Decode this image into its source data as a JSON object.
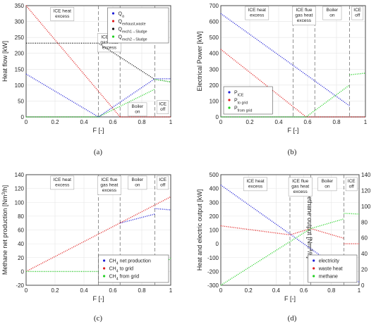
{
  "captions": [
    "(a)",
    "(b)",
    "(c)",
    "(d)"
  ],
  "colors": {
    "blue": "#1f1fd6",
    "red": "#e01e1e",
    "black": "#111111",
    "green": "#20d020"
  },
  "chart_data": [
    {
      "type": "line",
      "xlabel": "F [-]",
      "ylabel": "Heat flow [kW]",
      "xlim": [
        0,
        1
      ],
      "ylim": [
        0,
        350
      ],
      "xticks": [
        "0",
        "0.2",
        "0.4",
        "0.6",
        "0.8",
        "1"
      ],
      "yticks": [
        "0",
        "50",
        "100",
        "150",
        "200",
        "250",
        "300",
        "350"
      ],
      "grid": true,
      "legend_position": "top-right",
      "dividers": [
        0.5,
        0.65,
        0.89
      ],
      "zones": [
        {
          "lines": [
            "ICE heat",
            "excess"
          ],
          "x": 0.25,
          "y": 338
        },
        {
          "lines": [
            "ICE flue",
            "gas heat",
            "excess"
          ],
          "x": 0.575,
          "y": 256
        },
        {
          "lines": [
            "Boiler",
            "on"
          ],
          "x": 0.77,
          "y": 38
        },
        {
          "lines": [
            "ICE",
            "off"
          ],
          "x": 0.945,
          "y": 45
        }
      ],
      "series": [
        {
          "name": "Q_a",
          "color": "blue",
          "segments": [
            [
              [
                0,
                135
              ],
              [
                0.5,
                0
              ],
              [
                0.89,
                120
              ],
              [
                1,
                120
              ]
            ]
          ]
        },
        {
          "name": "Q_exhaust,waste",
          "color": "red",
          "segments": [
            [
              [
                0,
                350
              ],
              [
                0.65,
                0
              ]
            ],
            [
              [
                0.65,
                0
              ],
              [
                1,
                0
              ]
            ]
          ]
        },
        {
          "name": "Q_exch1→Sludge",
          "color": "black",
          "segments": [
            [
              [
                0,
                232
              ],
              [
                0.5,
                232
              ],
              [
                0.89,
                118
              ]
            ],
            [
              [
                0.89,
                118
              ],
              [
                1,
                110
              ]
            ]
          ]
        },
        {
          "name": "Q_exch2→Sludge",
          "color": "green",
          "segments": [
            [
              [
                0,
                0
              ],
              [
                0.5,
                0
              ],
              [
                0.89,
                87
              ]
            ],
            [
              [
                0.89,
                118
              ],
              [
                1,
                110
              ]
            ]
          ]
        }
      ]
    },
    {
      "type": "line",
      "xlabel": "F [-]",
      "ylabel": "Electrical Power [kW]",
      "xlim": [
        0,
        1
      ],
      "ylim": [
        0,
        700
      ],
      "xticks": [
        "0",
        "0.2",
        "0.4",
        "0.6",
        "0.8",
        "1"
      ],
      "yticks": [
        "0",
        "100",
        "200",
        "300",
        "400",
        "500",
        "600",
        "700"
      ],
      "grid": true,
      "legend_position": "bottom-left",
      "dividers": [
        0.5,
        0.65,
        0.89
      ],
      "zones": [
        {
          "lines": [
            "ICE heat",
            "excess"
          ],
          "x": 0.25,
          "y": 682
        },
        {
          "lines": [
            "ICE flue",
            "gas heat",
            "excess"
          ],
          "x": 0.575,
          "y": 682
        },
        {
          "lines": [
            "Boiler",
            "on"
          ],
          "x": 0.77,
          "y": 682
        },
        {
          "lines": [
            "ICE",
            "off"
          ],
          "x": 0.945,
          "y": 682
        }
      ],
      "series": [
        {
          "name": "P_ICE",
          "color": "blue",
          "segments": [
            [
              [
                0,
                650
              ],
              [
                0.89,
                70
              ]
            ]
          ]
        },
        {
          "name": "P_to grid",
          "color": "red",
          "segments": [
            [
              [
                0,
                425
              ],
              [
                0.59,
                0
              ],
              [
                1,
                0
              ]
            ]
          ]
        },
        {
          "name": "P_from grid",
          "color": "green",
          "segments": [
            [
              [
                0,
                0
              ],
              [
                0.59,
                0
              ],
              [
                0.89,
                200
              ]
            ],
            [
              [
                0.89,
                265
              ],
              [
                1,
                275
              ]
            ]
          ]
        }
      ]
    },
    {
      "type": "line",
      "xlabel": "F [-]",
      "ylabel": "Methane net production [Nm^3/h]",
      "xlim": [
        0,
        1
      ],
      "ylim": [
        -20,
        140
      ],
      "xticks": [
        "0",
        "0.2",
        "0.4",
        "0.6",
        "0.8",
        "1"
      ],
      "yticks": [
        "-20",
        "0",
        "20",
        "40",
        "60",
        "80",
        "100",
        "120",
        "140"
      ],
      "grid": true,
      "legend_position": "bottom-right",
      "dividers": [
        0.5,
        0.65,
        0.89
      ],
      "zones": [
        {
          "lines": [
            "ICE heat",
            "excess"
          ],
          "x": 0.25,
          "y": 135
        },
        {
          "lines": [
            "ICE flue",
            "gas heat",
            "excess"
          ],
          "x": 0.575,
          "y": 135
        },
        {
          "lines": [
            "Boiler",
            "on"
          ],
          "x": 0.77,
          "y": 135
        },
        {
          "lines": [
            "ICE",
            "off"
          ],
          "x": 0.945,
          "y": 135
        }
      ],
      "series": [
        {
          "name": "CH4 net production",
          "color": "blue",
          "segments": [
            [
              [
                0.65,
                70
              ],
              [
                0.89,
                83
              ]
            ],
            [
              [
                0.89,
                91
              ],
              [
                1,
                89
              ]
            ]
          ]
        },
        {
          "name": "CH4 to grid",
          "color": "red",
          "segments": [
            [
              [
                0,
                0
              ],
              [
                1,
                108
              ]
            ]
          ]
        },
        {
          "name": "CH4 from grid",
          "color": "green",
          "segments": [
            [
              [
                0,
                0
              ],
              [
                0.65,
                0
              ],
              [
                0.89,
                13
              ]
            ],
            [
              [
                0.89,
                0
              ],
              [
                1,
                19
              ]
            ]
          ]
        }
      ]
    },
    {
      "type": "line",
      "xlabel": "F [-]",
      "ylabel": "Heat and electric output [kW]",
      "y2label": "Methane output [Nm^3/h]",
      "xlim": [
        0,
        1
      ],
      "ylim": [
        -300,
        500
      ],
      "y2lim": [
        0,
        140
      ],
      "xticks": [
        "0",
        "0.2",
        "0.4",
        "0.6",
        "0.8",
        "1"
      ],
      "yticks": [
        "-300",
        "-200",
        "-100",
        "0",
        "100",
        "200",
        "300",
        "400",
        "500"
      ],
      "y2ticks": [
        "0",
        "20",
        "40",
        "60",
        "80",
        "100",
        "120",
        "140"
      ],
      "grid": true,
      "legend_position": "bottom-right",
      "dividers": [
        0.5,
        0.65,
        0.89
      ],
      "zones": [
        {
          "lines": [
            "ICE heat",
            "excess"
          ],
          "x": 0.25,
          "y": 465
        },
        {
          "lines": [
            "ICE flue",
            "gas heat",
            "excess"
          ],
          "x": 0.575,
          "y": 465
        },
        {
          "lines": [
            "Boiler",
            "on"
          ],
          "x": 0.77,
          "y": 465
        },
        {
          "lines": [
            "ICE",
            "off"
          ],
          "x": 0.945,
          "y": 465
        }
      ],
      "series": [
        {
          "name": "electricity",
          "color": "blue",
          "segments": [
            [
              [
                0,
                425
              ],
              [
                0.89,
                -205
              ]
            ],
            [
              [
                0.89,
                -270
              ],
              [
                1,
                -275
              ]
            ]
          ]
        },
        {
          "name": "waste heat",
          "color": "red",
          "segments": [
            [
              [
                0,
                130
              ],
              [
                0.5,
                65
              ],
              [
                0.65,
                110
              ],
              [
                0.89,
                40
              ]
            ],
            [
              [
                0.89,
                0
              ],
              [
                1,
                0
              ]
            ]
          ]
        },
        {
          "name": "methane",
          "color": "green",
          "segments": [
            [
              [
                0,
                -300
              ],
              [
                0.65,
                110
              ],
              [
                0.89,
                180
              ]
            ],
            [
              [
                0.89,
                220
              ],
              [
                1,
                215
              ]
            ]
          ]
        }
      ]
    }
  ]
}
